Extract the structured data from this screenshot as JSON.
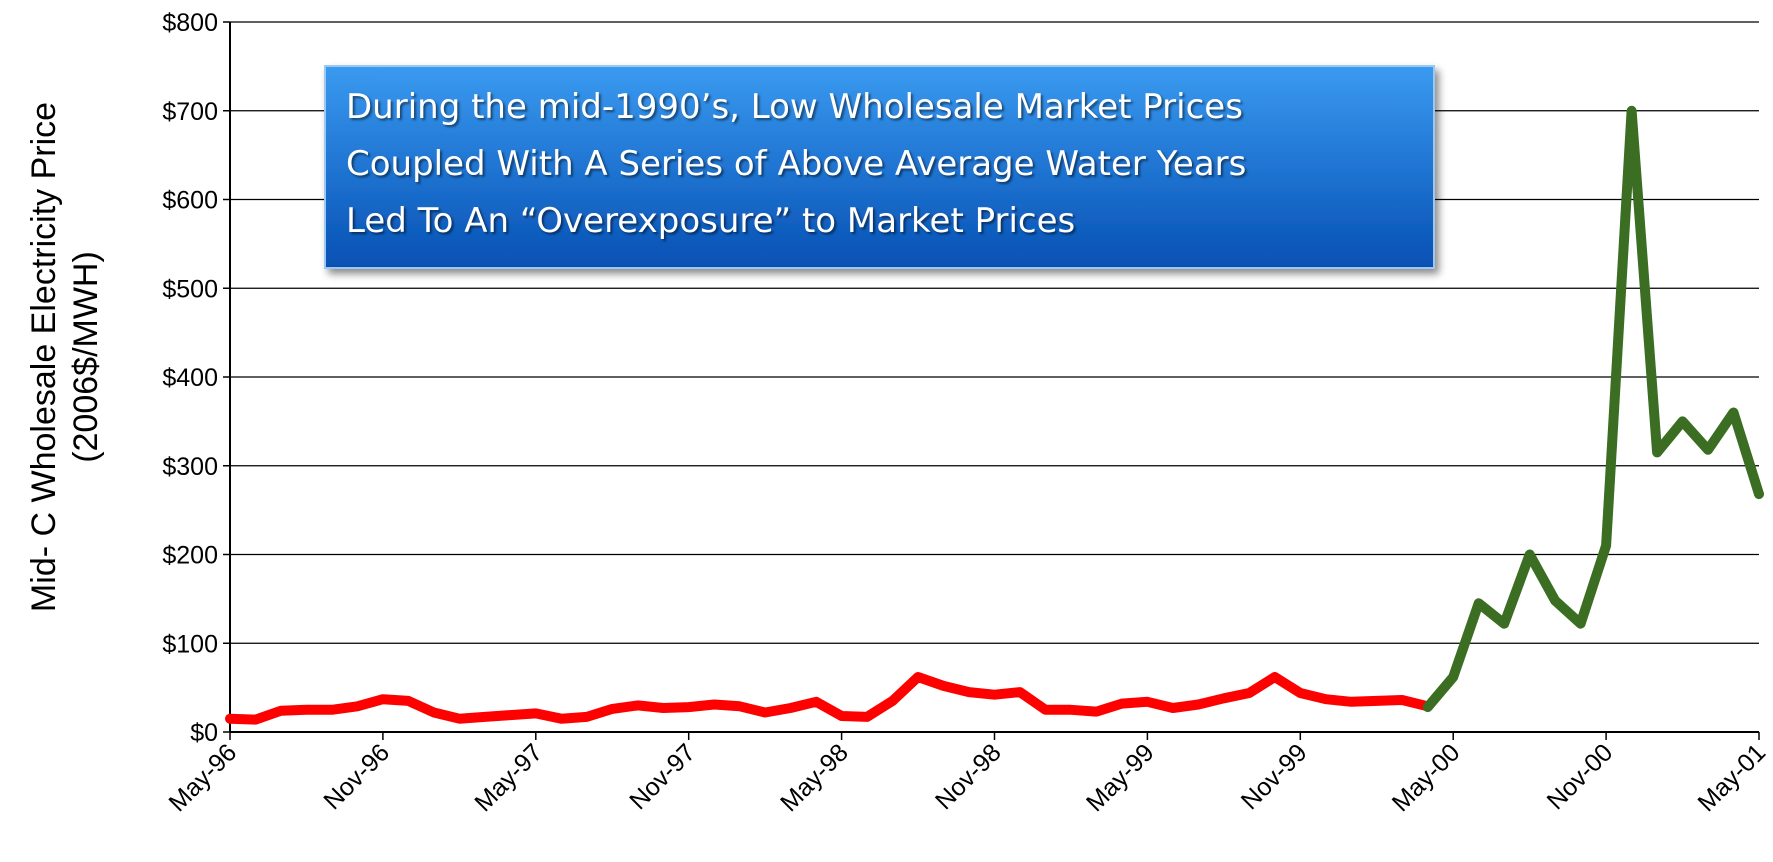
{
  "chart_data": {
    "type": "line",
    "ylabel": [
      "Mid- C Wholesale Electricity Price",
      "(2006$/MWH)"
    ],
    "annotation": [
      "During the mid-1990’s, Low Wholesale Market Prices",
      "Coupled With A Series of Above Average Water Years",
      "Led To An “Overexposure” to Market Prices"
    ],
    "categories": [
      "May-96",
      null,
      null,
      null,
      null,
      null,
      "Nov-96",
      null,
      null,
      null,
      null,
      null,
      "May-97",
      null,
      null,
      null,
      null,
      null,
      "Nov-97",
      null,
      null,
      null,
      null,
      null,
      "May-98",
      null,
      null,
      null,
      null,
      null,
      "Nov-98",
      null,
      null,
      null,
      null,
      null,
      "May-99",
      null,
      null,
      null,
      null,
      null,
      "Nov-99",
      null,
      null,
      null,
      null,
      null,
      "May-00",
      null,
      null,
      null,
      null,
      null,
      "Nov-00",
      null,
      null,
      null,
      null,
      null,
      "May-01"
    ],
    "series": [
      {
        "color": "#ff0000",
        "values": [
          15,
          14,
          24,
          25,
          25,
          29,
          37,
          35,
          22,
          15,
          17,
          19,
          21,
          15,
          17,
          26,
          30,
          27,
          28,
          31,
          29,
          22,
          27,
          34,
          18,
          17,
          35,
          62,
          52,
          45,
          42,
          45,
          25,
          25,
          23,
          32,
          34,
          27,
          31,
          38,
          44,
          62,
          44,
          37,
          34,
          35,
          36,
          29,
          null,
          null,
          null,
          null,
          null,
          null,
          null,
          null,
          null,
          null,
          null,
          null,
          null
        ]
      },
      {
        "color": "#3b6e22",
        "values": [
          null,
          null,
          null,
          null,
          null,
          null,
          null,
          null,
          null,
          null,
          null,
          null,
          null,
          null,
          null,
          null,
          null,
          null,
          null,
          null,
          null,
          null,
          null,
          null,
          null,
          null,
          null,
          null,
          null,
          null,
          null,
          null,
          null,
          null,
          null,
          null,
          null,
          null,
          null,
          null,
          null,
          null,
          null,
          null,
          null,
          null,
          null,
          28,
          62,
          145,
          122,
          200,
          148,
          122,
          210,
          700,
          315,
          350,
          318,
          360,
          268
        ]
      }
    ],
    "ylim": [
      0,
      800
    ],
    "yticks": [
      {
        "value": 0,
        "label": "$0"
      },
      {
        "value": 100,
        "label": "$100"
      },
      {
        "value": 200,
        "label": "$200"
      },
      {
        "value": 300,
        "label": "$300"
      },
      {
        "value": 400,
        "label": "$400"
      },
      {
        "value": 500,
        "label": "$500"
      },
      {
        "value": 600,
        "label": "$600"
      },
      {
        "value": 700,
        "label": "$700"
      },
      {
        "value": 800,
        "label": "$800"
      }
    ],
    "grid": true
  }
}
